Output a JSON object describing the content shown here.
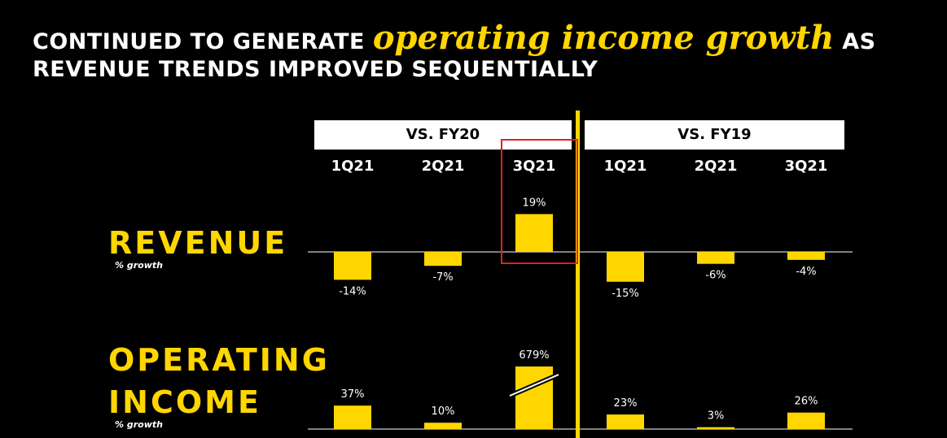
{
  "title": {
    "part1": "CONTINUED TO GENERATE ",
    "emphasis": "operating income growth",
    "part2": " AS REVENUE TRENDS IMPROVED SEQUENTIALLY"
  },
  "colors": {
    "accent": "#ffd600",
    "highlight_box": "#e02020",
    "background": "#000000"
  },
  "groups": [
    {
      "label": "VS. FY20"
    },
    {
      "label": "VS. FY19"
    }
  ],
  "quarters": [
    "1Q21",
    "2Q21",
    "3Q21",
    "1Q21",
    "2Q21",
    "3Q21"
  ],
  "row_labels": {
    "revenue": "REVENUE",
    "revenue_sub": "% growth",
    "op_line1": "OPERATING",
    "op_line2": "INCOME",
    "op_sub": "% growth"
  },
  "chart_data": [
    {
      "type": "bar",
      "categories": [
        "1Q21",
        "2Q21",
        "3Q21",
        "1Q21",
        "2Q21",
        "3Q21"
      ],
      "groups": [
        "VS. FY20",
        "VS. FY20",
        "VS. FY20",
        "VS. FY19",
        "VS. FY19",
        "VS. FY19"
      ],
      "title": "REVENUE",
      "ylabel": "% growth",
      "values": [
        -14,
        -7,
        19,
        -15,
        -6,
        -4
      ],
      "labels": [
        "-14%",
        "-7%",
        "19%",
        "-15%",
        "-6%",
        "-4%"
      ],
      "highlighted_category_index": 2
    },
    {
      "type": "bar",
      "categories": [
        "1Q21",
        "2Q21",
        "3Q21",
        "1Q21",
        "2Q21",
        "3Q21"
      ],
      "groups": [
        "VS. FY20",
        "VS. FY20",
        "VS. FY20",
        "VS. FY19",
        "VS. FY19",
        "VS. FY19"
      ],
      "title": "OPERATING INCOME",
      "ylabel": "% growth",
      "values": [
        37,
        10,
        679,
        23,
        3,
        26
      ],
      "labels": [
        "37%",
        "10%",
        "679%",
        "23%",
        "3%",
        "26%"
      ],
      "broken_axis_index": 2
    }
  ]
}
